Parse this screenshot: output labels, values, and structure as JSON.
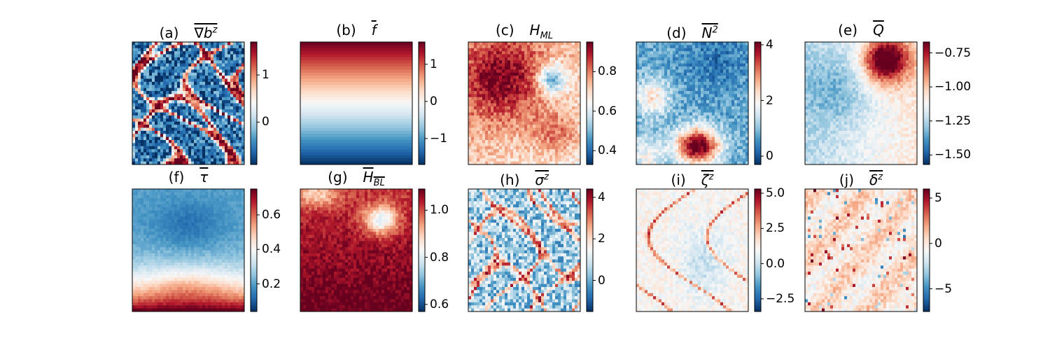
{
  "chart_data": [
    {
      "type": "heatmap",
      "label": "(a)",
      "symbol": "∇b",
      "sup": "z",
      "sub": "",
      "overline": true,
      "colormap": "RdBu_r",
      "vmin": -0.9,
      "vmax": 1.7,
      "colorbar_ticks": [
        {
          "v": 1,
          "t": "1"
        },
        {
          "v": 0,
          "t": "0"
        }
      ],
      "pattern": "filaments"
    },
    {
      "type": "heatmap",
      "label": "(b)",
      "symbol": "f",
      "sup": "",
      "sub": "",
      "overline": true,
      "colormap": "RdBu_r",
      "vmin": -1.7,
      "vmax": 1.6,
      "colorbar_ticks": [
        {
          "v": 1,
          "t": "1"
        },
        {
          "v": 0,
          "t": "0"
        },
        {
          "v": -1,
          "t": "−1"
        }
      ],
      "pattern": "gradient"
    },
    {
      "type": "heatmap",
      "label": "(c)",
      "symbol": "H",
      "sup": "",
      "sub": "ML",
      "overline": false,
      "colormap": "RdBu_r",
      "vmin": 0.33,
      "vmax": 0.95,
      "colorbar_ticks": [
        {
          "v": 0.8,
          "t": "0.8"
        },
        {
          "v": 0.6,
          "t": "0.6"
        },
        {
          "v": 0.4,
          "t": "0.4"
        }
      ],
      "pattern": "smooth"
    },
    {
      "type": "heatmap",
      "label": "(d)",
      "symbol": "N",
      "sup": "2",
      "sub": "",
      "overline": true,
      "colormap": "RdBu_r",
      "vmin": -0.3,
      "vmax": 4.1,
      "colorbar_ticks": [
        {
          "v": 4,
          "t": "4"
        },
        {
          "v": 2,
          "t": "2"
        },
        {
          "v": 0,
          "t": "0"
        }
      ],
      "pattern": "smooth"
    },
    {
      "type": "heatmap",
      "label": "(e)",
      "symbol": "Q",
      "sup": "",
      "sub": "",
      "overline": true,
      "colormap": "RdBu_r",
      "vmin": -1.57,
      "vmax": -0.67,
      "colorbar_ticks": [
        {
          "v": -0.75,
          "t": "−0.75"
        },
        {
          "v": -1.0,
          "t": "−1.00"
        },
        {
          "v": -1.25,
          "t": "−1.25"
        },
        {
          "v": -1.5,
          "t": "−1.50"
        }
      ],
      "pattern": "smooth"
    },
    {
      "type": "heatmap",
      "label": "(f)",
      "symbol": "τ",
      "sup": "",
      "sub": "",
      "overline": true,
      "colormap": "RdBu_r",
      "vmin": 0.04,
      "vmax": 0.75,
      "colorbar_ticks": [
        {
          "v": 0.6,
          "t": "0.6"
        },
        {
          "v": 0.4,
          "t": "0.4"
        },
        {
          "v": 0.2,
          "t": "0.2"
        }
      ],
      "pattern": "smooth"
    },
    {
      "type": "heatmap",
      "label": "(g)",
      "symbol": "H",
      "sup": "",
      "sub": "BL",
      "overline": true,
      "colormap": "RdBu_r",
      "vmin": 0.57,
      "vmax": 1.09,
      "colorbar_ticks": [
        {
          "v": 1.0,
          "t": "1.0"
        },
        {
          "v": 0.8,
          "t": "0.8"
        },
        {
          "v": 0.6,
          "t": "0.6"
        }
      ],
      "pattern": "smooth"
    },
    {
      "type": "heatmap",
      "label": "(h)",
      "symbol": "σ",
      "sup": "z",
      "sub": "",
      "overline": true,
      "colormap": "RdBu_r",
      "vmin": -1.5,
      "vmax": 4.4,
      "colorbar_ticks": [
        {
          "v": 4,
          "t": "4"
        },
        {
          "v": 2,
          "t": "2"
        },
        {
          "v": 0,
          "t": "0"
        }
      ],
      "pattern": "filaments"
    },
    {
      "type": "heatmap",
      "label": "(i)",
      "symbol": "ζ",
      "sup": "z",
      "sub": "",
      "overline": true,
      "colormap": "RdBu_r",
      "vmin": -3.4,
      "vmax": 5.3,
      "colorbar_ticks": [
        {
          "v": 5,
          "t": "5.0"
        },
        {
          "v": 2.5,
          "t": "2.5"
        },
        {
          "v": 0,
          "t": "0.0"
        },
        {
          "v": -2.5,
          "t": "−2.5"
        }
      ],
      "pattern": "smooth"
    },
    {
      "type": "heatmap",
      "label": "(j)",
      "symbol": "δ",
      "sup": "z",
      "sub": "",
      "overline": true,
      "colormap": "RdBu_r",
      "vmin": -7.5,
      "vmax": 6.0,
      "colorbar_ticks": [
        {
          "v": 5,
          "t": "5"
        },
        {
          "v": 0,
          "t": "0"
        },
        {
          "v": -5,
          "t": "−5"
        }
      ],
      "pattern": "stripes"
    }
  ]
}
